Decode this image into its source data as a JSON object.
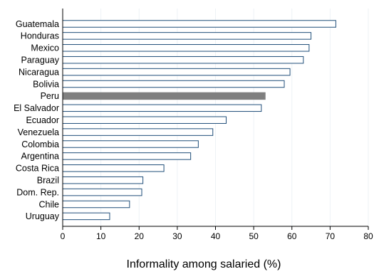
{
  "chart_data": {
    "type": "bar",
    "orientation": "horizontal",
    "categories": [
      "Guatemala",
      "Honduras",
      "Mexico",
      "Paraguay",
      "Nicaragua",
      "Bolivia",
      "Peru",
      "El Salvador",
      "Ecuador",
      "Venezuela",
      "Colombia",
      "Argentina",
      "Costa Rica",
      "Brazil",
      "Dom. Rep.",
      "Chile",
      "Uruguay"
    ],
    "values": [
      71.5,
      65.0,
      64.5,
      63.0,
      59.5,
      58.0,
      53.0,
      52.0,
      42.8,
      39.3,
      35.5,
      33.5,
      26.5,
      21.0,
      20.7,
      17.5,
      12.3
    ],
    "highlight": "Peru",
    "title": "",
    "xlabel": "Informality among salaried (%)",
    "ylabel": "",
    "xlim": [
      0,
      80
    ],
    "xticks": [
      "0",
      "10",
      "20",
      "30",
      "40",
      "50",
      "60",
      "70",
      "80"
    ],
    "grid": "vertical",
    "legend": "none",
    "colors": {
      "bar_fill": "#ffffff",
      "bar_stroke": "#1f4e79",
      "highlight_fill": "#7f7f7f",
      "grid": "#eef2f6",
      "axis": "#000000"
    }
  }
}
